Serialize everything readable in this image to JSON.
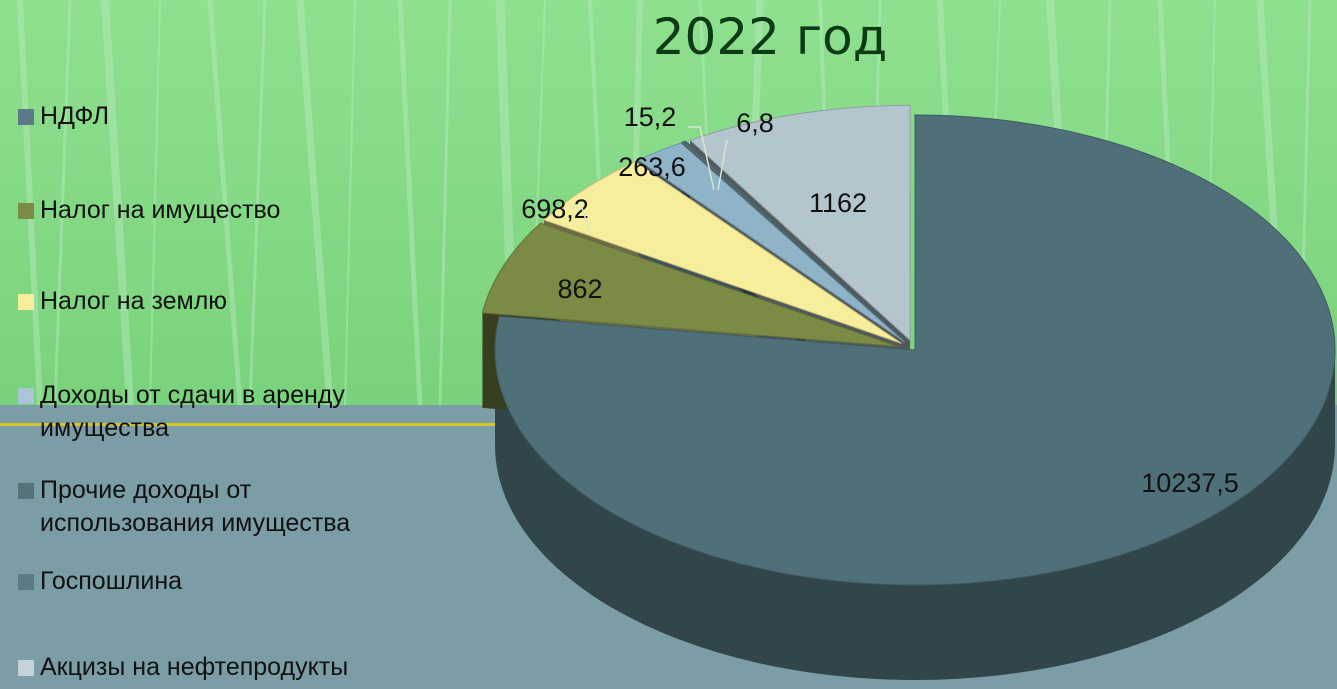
{
  "page": {
    "title": "2022 год"
  },
  "colors": {
    "background_top": "#88d98c",
    "background_bottom": "#7b9da5",
    "divider": "#d6c52a"
  },
  "chart_data": {
    "type": "pie",
    "title": "2022 год",
    "legend_position": "left",
    "categories": [
      "НДФЛ",
      "Налог на имущество",
      "Налог на землю",
      "Доходы от сдачи в аренду имущества",
      "Прочие доходы от использования имущества",
      "Госпошлина",
      "Акцизы на нефтепродукты"
    ],
    "values": [
      10237.5,
      862,
      698.2,
      263.6,
      15.2,
      6.8,
      1162
    ],
    "value_labels": [
      "10237,5",
      "862",
      "698,2",
      "263,6",
      "15,2",
      "6,8",
      "1162"
    ],
    "colors": [
      "#4f7079",
      "#7b8b46",
      "#f6ee9a",
      "#8fb4c8",
      "#56737c",
      "#5c7a83",
      "#b3c5cd"
    ]
  },
  "legend": {
    "items": [
      {
        "label": "НДФЛ",
        "color": "#5b7a8c"
      },
      {
        "label": "Налог на имущество",
        "color": "#7b8b46"
      },
      {
        "label": "Налог на землю",
        "color": "#f6ee9a"
      },
      {
        "label": "Доходы от сдачи в аренду имущества",
        "color": "#a9c5d6"
      },
      {
        "label": "Прочие доходы от использования имущества",
        "color": "#56737c"
      },
      {
        "label": "Госпошлина",
        "color": "#5c7a83"
      },
      {
        "label": "Акцизы на нефтепродукты",
        "color": "#c5d3d9"
      }
    ]
  }
}
